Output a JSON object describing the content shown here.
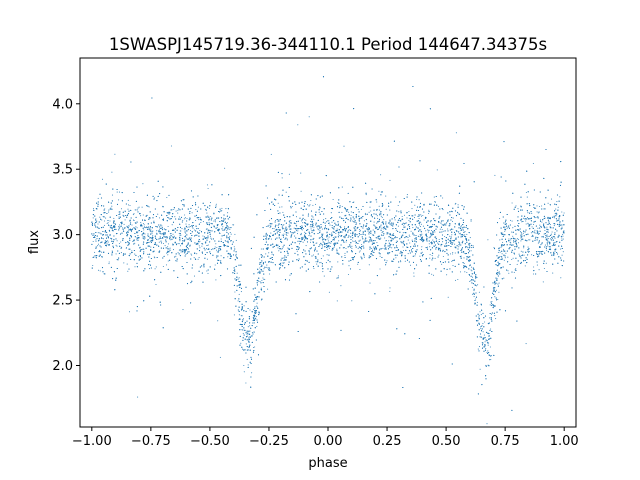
{
  "chart_data": {
    "type": "scatter",
    "title": "1SWASPJ145719.36-344110.1 Period 144647.34375s",
    "xlabel": "phase",
    "ylabel": "flux",
    "xlim": [
      -1.05,
      1.05
    ],
    "ylim": [
      1.53,
      4.35
    ],
    "x_ticks": [
      -1.0,
      -0.75,
      -0.5,
      -0.25,
      0.0,
      0.25,
      0.5,
      0.75,
      1.0
    ],
    "x_tick_labels": [
      "−1.00",
      "−0.75",
      "−0.50",
      "−0.25",
      "0.00",
      "0.25",
      "0.50",
      "0.75",
      "1.00"
    ],
    "y_ticks": [
      2.0,
      2.5,
      3.0,
      3.5,
      4.0
    ],
    "y_tick_labels": [
      "2.0",
      "2.5",
      "3.0",
      "3.5",
      "4.0"
    ],
    "grid": false,
    "legend": "none",
    "marker_color": "#1f77b4",
    "series": [
      {
        "baseline_flux": 3.0,
        "scatter_sigma": 0.13,
        "eclipses": [
          {
            "phase": -0.335,
            "min_flux": 2.15,
            "half_width": 0.075
          },
          {
            "phase": 0.665,
            "min_flux": 2.15,
            "half_width": 0.075
          }
        ],
        "x_range": [
          -1.0,
          1.0
        ],
        "approx_point_count": 9000
      }
    ]
  }
}
